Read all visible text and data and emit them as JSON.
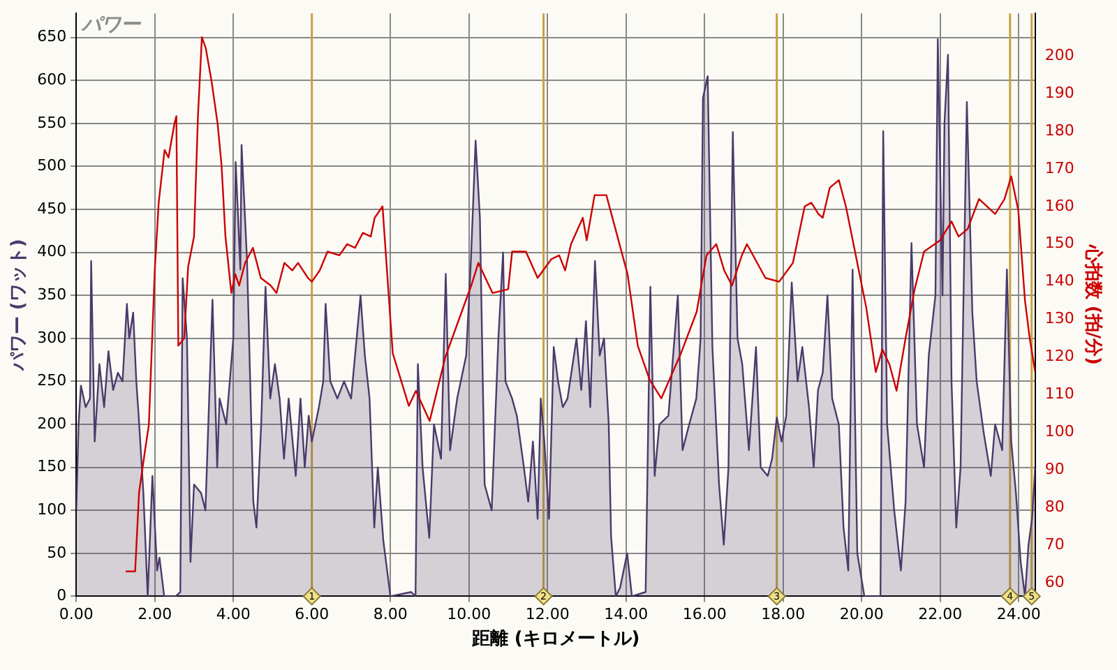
{
  "chart_data": {
    "type": "area",
    "title": "パワー",
    "xlabel": "距離 (キロメートル)",
    "ylabel": "パワー (ワット)",
    "y2label": "心拍数 (拍/分)",
    "xlim": [
      0,
      24.42
    ],
    "xticks": [
      {
        "value": 0,
        "label": "0.00"
      },
      {
        "value": 2,
        "label": "2.00"
      },
      {
        "value": 4,
        "label": "4.00"
      },
      {
        "value": 6,
        "label": "6.00"
      },
      {
        "value": 8,
        "label": "8.00"
      },
      {
        "value": 10,
        "label": "10.00"
      },
      {
        "value": 12,
        "label": "12.00"
      },
      {
        "value": 14,
        "label": "14.00"
      },
      {
        "value": 16,
        "label": "16.00"
      },
      {
        "value": 18,
        "label": "18.00"
      },
      {
        "value": 20,
        "label": "20.00"
      },
      {
        "value": 22,
        "label": "22.00"
      },
      {
        "value": 24,
        "label": "24.00"
      }
    ],
    "ylim": [
      0,
      678
    ],
    "yticks": [
      0,
      50,
      100,
      150,
      200,
      250,
      300,
      350,
      400,
      450,
      500,
      550,
      600,
      650
    ],
    "y2lim": [
      56.4,
      211.3
    ],
    "y2ticks": [
      60,
      70,
      80,
      90,
      100,
      110,
      120,
      130,
      140,
      150,
      160,
      170,
      180,
      190,
      200
    ],
    "grid": true,
    "legend": false,
    "marker": "none",
    "series": [
      {
        "color": "#4b3a6b",
        "axis": "y",
        "x": [
          0,
          0.06,
          0.12,
          0.24,
          0.35,
          0.38,
          0.47,
          0.59,
          0.71,
          0.82,
          0.94,
          1.06,
          1.18,
          1.29,
          1.35,
          1.45,
          1.53,
          1.59,
          1.71,
          1.82,
          1.94,
          2.06,
          2.12,
          2.24,
          2.53,
          2.65,
          2.71,
          2.82,
          2.91,
          3.0,
          3.18,
          3.29,
          3.47,
          3.59,
          3.65,
          3.82,
          4.0,
          4.06,
          4.18,
          4.21,
          4.35,
          4.51,
          4.59,
          4.71,
          4.82,
          4.94,
          5.06,
          5.18,
          5.29,
          5.41,
          5.59,
          5.71,
          5.82,
          5.92,
          6.0,
          6.18,
          6.29,
          6.35,
          6.47,
          6.65,
          6.82,
          7.0,
          7.24,
          7.35,
          7.47,
          7.59,
          7.68,
          7.82,
          8.0,
          8.53,
          8.64,
          8.7,
          8.82,
          8.99,
          9.11,
          9.29,
          9.41,
          9.52,
          9.7,
          9.93,
          10.05,
          10.17,
          10.28,
          10.4,
          10.58,
          10.75,
          10.87,
          10.93,
          11.1,
          11.22,
          11.4,
          11.51,
          11.63,
          11.75,
          11.83,
          11.92,
          12.04,
          12.16,
          12.27,
          12.39,
          12.51,
          12.74,
          12.86,
          12.98,
          13.09,
          13.21,
          13.33,
          13.44,
          13.56,
          13.62,
          13.74,
          13.85,
          14.03,
          14.15,
          14.5,
          14.62,
          14.73,
          14.85,
          15.08,
          15.32,
          15.44,
          15.61,
          15.79,
          15.9,
          15.96,
          16.08,
          16.2,
          16.37,
          16.49,
          16.61,
          16.72,
          16.84,
          16.96,
          17.13,
          17.31,
          17.43,
          17.61,
          17.72,
          17.84,
          17.96,
          18.08,
          18.22,
          18.37,
          18.49,
          18.66,
          18.78,
          18.89,
          19.01,
          19.13,
          19.25,
          19.42,
          19.54,
          19.66,
          19.77,
          19.89,
          20.07,
          20.48,
          20.55,
          20.65,
          20.83,
          21.0,
          21.12,
          21.27,
          21.41,
          21.59,
          21.71,
          21.88,
          21.94,
          22.06,
          22.11,
          22.2,
          22.29,
          22.41,
          22.52,
          22.68,
          22.82,
          22.93,
          23.11,
          23.29,
          23.4,
          23.58,
          23.7,
          23.81,
          23.93,
          24.05,
          24.16,
          24.25,
          24.34,
          24.42
        ],
        "values": [
          100,
          200,
          245,
          220,
          230,
          390,
          180,
          270,
          220,
          285,
          240,
          260,
          250,
          340,
          300,
          330,
          250,
          210,
          120,
          0,
          140,
          30,
          45,
          0,
          0,
          5,
          370,
          300,
          40,
          130,
          120,
          100,
          345,
          150,
          230,
          200,
          300,
          505,
          380,
          525,
          390,
          110,
          80,
          200,
          360,
          230,
          270,
          230,
          160,
          230,
          140,
          230,
          150,
          210,
          180,
          220,
          250,
          340,
          250,
          230,
          250,
          230,
          350,
          280,
          230,
          80,
          150,
          65,
          0,
          5,
          0,
          270,
          150,
          68,
          200,
          160,
          375,
          170,
          230,
          280,
          390,
          530,
          440,
          130,
          100,
          300,
          400,
          250,
          230,
          210,
          150,
          110,
          180,
          90,
          230,
          180,
          90,
          290,
          250,
          220,
          230,
          300,
          240,
          320,
          220,
          390,
          280,
          300,
          200,
          70,
          0,
          10,
          50,
          0,
          5,
          360,
          140,
          200,
          210,
          350,
          170,
          200,
          230,
          300,
          580,
          605,
          290,
          130,
          60,
          150,
          540,
          300,
          270,
          170,
          290,
          150,
          140,
          160,
          208,
          180,
          210,
          365,
          250,
          290,
          220,
          150,
          240,
          260,
          350,
          230,
          200,
          80,
          30,
          380,
          50,
          0,
          0,
          541,
          200,
          100,
          30,
          110,
          411,
          200,
          150,
          280,
          350,
          648,
          350,
          550,
          630,
          250,
          80,
          150,
          575,
          330,
          250,
          190,
          140,
          200,
          170,
          380,
          180,
          120,
          40,
          0,
          60,
          90,
          150
        ]
      },
      {
        "type": "line",
        "color": "#cc0000",
        "axis": "y2",
        "x": [
          1.26,
          1.5,
          1.6,
          1.75,
          1.85,
          2.0,
          2.1,
          2.25,
          2.35,
          2.5,
          2.55,
          2.6,
          2.75,
          2.85,
          3.0,
          3.1,
          3.2,
          3.3,
          3.45,
          3.6,
          3.7,
          3.8,
          3.95,
          4.05,
          4.15,
          4.3,
          4.5,
          4.7,
          4.95,
          5.1,
          5.3,
          5.5,
          5.65,
          5.9,
          6.0,
          6.2,
          6.4,
          6.7,
          6.9,
          7.1,
          7.3,
          7.5,
          7.6,
          7.8,
          8.06,
          8.47,
          8.65,
          9.0,
          9.4,
          10.06,
          10.24,
          10.6,
          11.0,
          11.1,
          11.45,
          11.75,
          12.1,
          12.3,
          12.45,
          12.6,
          12.9,
          13.0,
          13.2,
          13.5,
          13.68,
          14.04,
          14.3,
          14.6,
          14.9,
          15.4,
          15.8,
          16.05,
          16.3,
          16.5,
          16.7,
          16.95,
          17.08,
          17.55,
          17.9,
          18.25,
          18.55,
          18.72,
          18.9,
          19.01,
          19.19,
          19.42,
          19.6,
          19.89,
          20.12,
          20.36,
          20.53,
          20.71,
          20.89,
          21.12,
          21.35,
          21.59,
          22.0,
          22.29,
          22.47,
          22.7,
          22.99,
          23.4,
          23.64,
          23.81,
          23.99,
          24.16,
          24.28,
          24.42
        ],
        "values": [
          63,
          63,
          84,
          95,
          102,
          143,
          161,
          175,
          173,
          182,
          184,
          123,
          125,
          144,
          152,
          184,
          205,
          202,
          193,
          182,
          171,
          152,
          137,
          142,
          139,
          145,
          149,
          141,
          139,
          137,
          145,
          143,
          145,
          141,
          140,
          143,
          148,
          147,
          150,
          149,
          153,
          152,
          157,
          160,
          121,
          107,
          111,
          103,
          120,
          139,
          145,
          137,
          138,
          148,
          148,
          141,
          146,
          147,
          143,
          150,
          157,
          151,
          163,
          163,
          156,
          142,
          123,
          114,
          109,
          121,
          132,
          147,
          150,
          143,
          139,
          147,
          150,
          141,
          140,
          145,
          160,
          161,
          158,
          157,
          165,
          167,
          160,
          145,
          133,
          116,
          122,
          118,
          111,
          125,
          138,
          148,
          151,
          156,
          152,
          154,
          162,
          158,
          162,
          168,
          159,
          135,
          125,
          116
        ]
      }
    ],
    "ref_lines": [
      {
        "axis": "x",
        "value": 6.0,
        "color": "#c8a040"
      },
      {
        "axis": "x",
        "value": 11.9,
        "color": "#c8a040"
      },
      {
        "axis": "x",
        "value": 17.84,
        "color": "#c8a040"
      },
      {
        "axis": "x",
        "value": 23.78,
        "color": "#c8a040"
      },
      {
        "axis": "x",
        "value": 24.33,
        "color": "#c8a040"
      }
    ],
    "annotations": [
      {
        "text": "1",
        "x": 6.0,
        "y": 0
      },
      {
        "text": "2",
        "x": 11.9,
        "y": 0
      },
      {
        "text": "3",
        "x": 17.84,
        "y": 0
      },
      {
        "text": "4",
        "x": 23.78,
        "y": 0
      },
      {
        "text": "5",
        "x": 24.33,
        "y": 0
      }
    ]
  }
}
